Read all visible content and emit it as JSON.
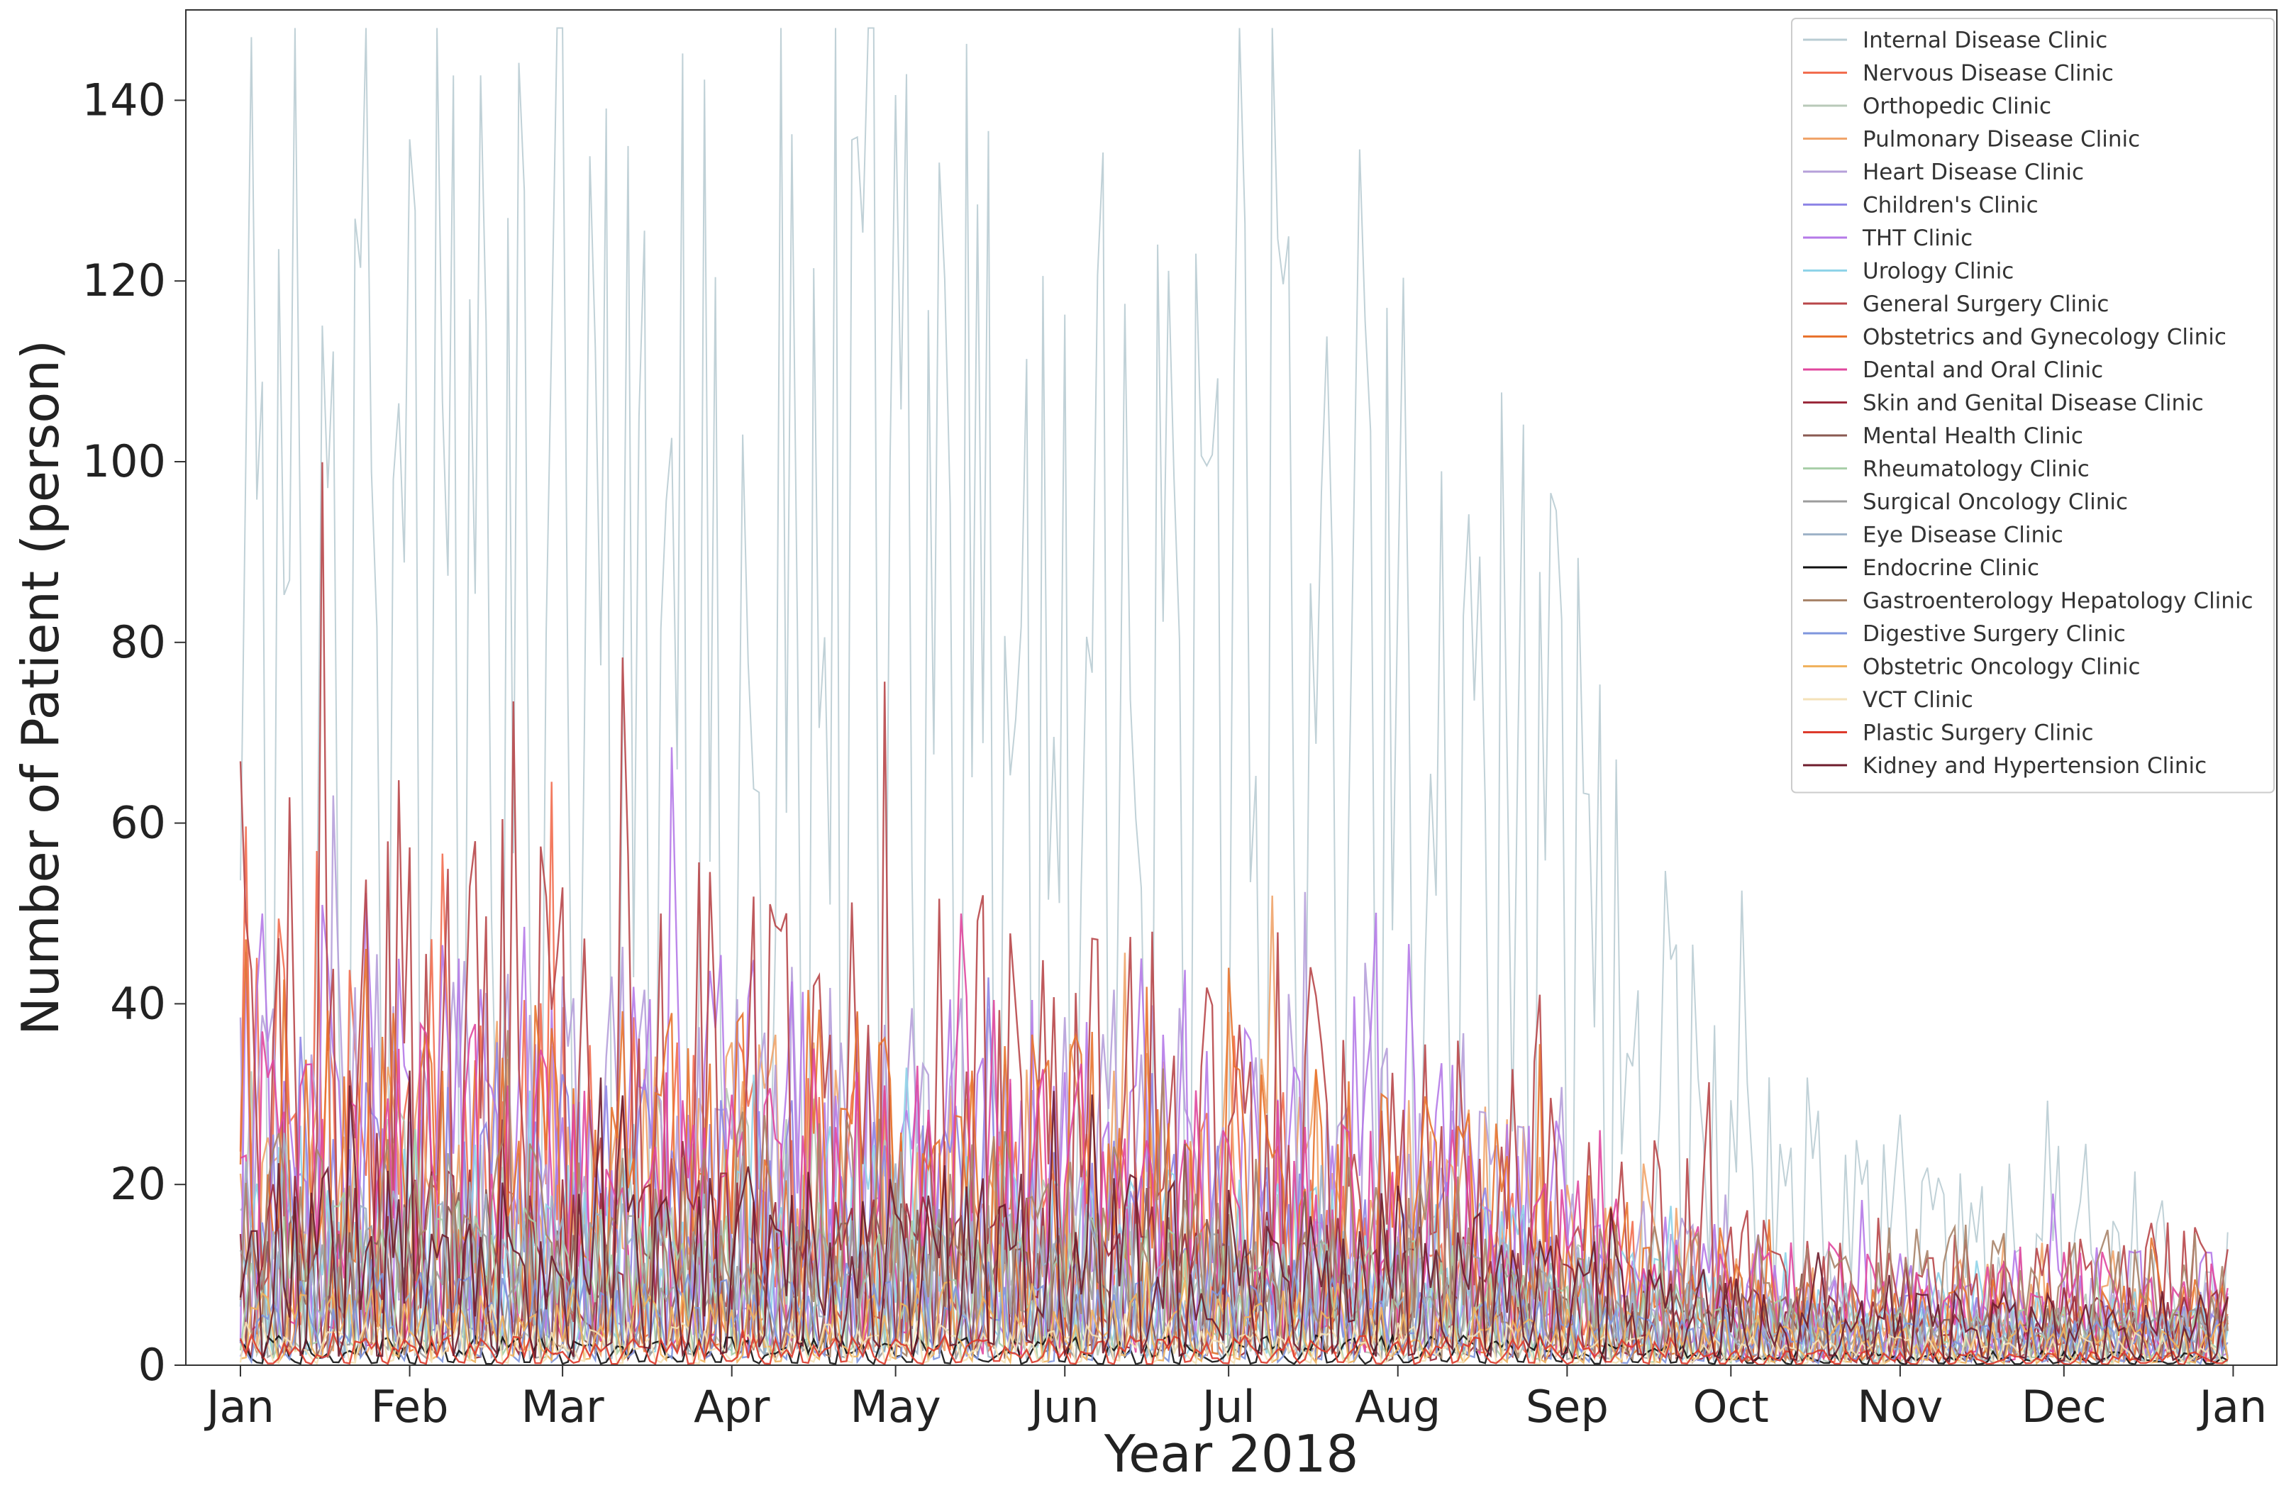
{
  "chart_data": {
    "type": "line",
    "title": "",
    "xlabel": "Year 2018",
    "ylabel": "Number of Patient (person)",
    "ylim": [
      0,
      150
    ],
    "yticks": [
      0,
      20,
      40,
      60,
      80,
      100,
      120,
      140
    ],
    "ytick_labels": [
      "0",
      "20",
      "40",
      "60",
      "80",
      "100",
      "120",
      "140"
    ],
    "xlim": [
      "2017-12-22",
      "2019-01-09"
    ],
    "xticks": [
      "2018-01-01",
      "2018-02-01",
      "2018-03-01",
      "2018-04-01",
      "2018-05-01",
      "2018-06-01",
      "2018-07-01",
      "2018-08-01",
      "2018-09-01",
      "2018-10-01",
      "2018-11-01",
      "2018-12-01",
      "2019-01-01"
    ],
    "xtick_labels": [
      "Jan",
      "Feb",
      "Mar",
      "Apr",
      "May",
      "Jun",
      "Jul",
      "Aug",
      "Sep",
      "Oct",
      "Nov",
      "Dec",
      "Jan"
    ],
    "x_start": "2018-01-01",
    "x_end": "2018-12-31",
    "grid": false,
    "legend_position": "top-right",
    "series": [
      {
        "name": "Internal Disease Clinic",
        "color": "#b9ccd3",
        "anchors": [
          95,
          105,
          100,
          85,
          90,
          95,
          92,
          85,
          80,
          75,
          70,
          50,
          22,
          18,
          18,
          15,
          12
        ]
      },
      {
        "name": "Nervous Disease Clinic",
        "color": "#f26d4f",
        "anchors": [
          40,
          30,
          28,
          25,
          22,
          20,
          18,
          16,
          15,
          12,
          10,
          8,
          5,
          4,
          4,
          4,
          4
        ]
      },
      {
        "name": "Orthopedic Clinic",
        "color": "#b8c9b8",
        "anchors": [
          20,
          18,
          16,
          18,
          20,
          18,
          16,
          15,
          14,
          12,
          10,
          8,
          6,
          5,
          5,
          5,
          5
        ]
      },
      {
        "name": "Pulmonary Disease Clinic",
        "color": "#f0a46a",
        "anchors": [
          18,
          20,
          22,
          20,
          24,
          22,
          20,
          22,
          24,
          20,
          18,
          14,
          8,
          6,
          6,
          6,
          6
        ]
      },
      {
        "name": "Heart Disease Clinic",
        "color": "#b6a0da",
        "anchors": [
          25,
          30,
          28,
          30,
          26,
          28,
          24,
          26,
          28,
          24,
          22,
          14,
          8,
          6,
          6,
          6,
          6
        ]
      },
      {
        "name": "Children's Clinic",
        "color": "#8f86e6",
        "anchors": [
          18,
          20,
          22,
          20,
          18,
          16,
          18,
          16,
          15,
          14,
          12,
          8,
          6,
          5,
          5,
          5,
          5
        ]
      },
      {
        "name": "THT Clinic",
        "color": "#b57ae8",
        "anchors": [
          30,
          32,
          28,
          30,
          28,
          26,
          24,
          26,
          24,
          22,
          20,
          14,
          9,
          8,
          8,
          8,
          8
        ]
      },
      {
        "name": "Urology Clinic",
        "color": "#8fd3e8",
        "anchors": [
          15,
          16,
          16,
          17,
          16,
          15,
          16,
          15,
          14,
          13,
          12,
          9,
          6,
          5,
          5,
          5,
          5
        ]
      },
      {
        "name": "General Surgery Clinic",
        "color": "#b8474a",
        "anchors": [
          45,
          40,
          38,
          36,
          35,
          34,
          32,
          30,
          28,
          26,
          24,
          18,
          12,
          10,
          10,
          10,
          10
        ]
      },
      {
        "name": "Obstetrics and Gynecology Clinic",
        "color": "#e8732e",
        "anchors": [
          30,
          28,
          26,
          25,
          24,
          24,
          22,
          24,
          22,
          20,
          18,
          12,
          8,
          6,
          6,
          6,
          6
        ]
      },
      {
        "name": "Dental and Oral Clinic",
        "color": "#e0479e",
        "anchors": [
          20,
          22,
          24,
          22,
          20,
          20,
          22,
          20,
          18,
          18,
          16,
          12,
          9,
          8,
          8,
          8,
          8
        ]
      },
      {
        "name": "Skin and Genital Disease Clinic",
        "color": "#9b2a3b",
        "anchors": [
          12,
          14,
          14,
          12,
          13,
          12,
          12,
          12,
          11,
          10,
          10,
          8,
          6,
          5,
          5,
          5,
          5
        ]
      },
      {
        "name": "Mental Health Clinic",
        "color": "#8a5a52",
        "anchors": [
          12,
          11,
          12,
          11,
          10,
          11,
          10,
          10,
          10,
          9,
          8,
          7,
          5,
          4,
          4,
          4,
          4
        ]
      },
      {
        "name": "Rheumatology Clinic",
        "color": "#a9cfa9",
        "anchors": [
          10,
          12,
          11,
          12,
          10,
          11,
          10,
          10,
          9,
          9,
          8,
          6,
          5,
          4,
          4,
          4,
          4
        ]
      },
      {
        "name": "Surgical Oncology Clinic",
        "color": "#9c9c9c",
        "anchors": [
          10,
          11,
          10,
          11,
          10,
          10,
          11,
          10,
          9,
          9,
          8,
          7,
          5,
          4,
          4,
          4,
          4
        ]
      },
      {
        "name": "Eye Disease Clinic",
        "color": "#9fb3c8",
        "anchors": [
          10,
          12,
          12,
          11,
          12,
          11,
          10,
          11,
          10,
          9,
          9,
          7,
          5,
          4,
          4,
          4,
          4
        ]
      },
      {
        "name": "Endocrine Clinic",
        "color": "#111111",
        "anchors": [
          2,
          2,
          2,
          2,
          2,
          2,
          2,
          2,
          2,
          2,
          2,
          2,
          1,
          1,
          1,
          1,
          1
        ]
      },
      {
        "name": "Gastroenterology Hepatology Clinic",
        "color": "#a8846a",
        "anchors": [
          14,
          16,
          15,
          16,
          18,
          17,
          16,
          16,
          15,
          14,
          13,
          10,
          9,
          9,
          10,
          10,
          10
        ]
      },
      {
        "name": "Digestive Surgery Clinic",
        "color": "#7f96dd",
        "anchors": [
          6,
          7,
          6,
          7,
          6,
          6,
          7,
          6,
          6,
          6,
          5,
          4,
          3,
          3,
          3,
          3,
          3
        ]
      },
      {
        "name": "Obstetric Oncology Clinic",
        "color": "#f0b25e",
        "anchors": [
          5,
          6,
          5,
          6,
          5,
          5,
          6,
          5,
          5,
          5,
          4,
          4,
          3,
          3,
          3,
          3,
          3
        ]
      },
      {
        "name": "VCT Clinic",
        "color": "#f4e2b8",
        "anchors": [
          3,
          3,
          3,
          3,
          3,
          3,
          3,
          3,
          3,
          3,
          3,
          2,
          2,
          2,
          2,
          2,
          2
        ]
      },
      {
        "name": "Plastic Surgery Clinic",
        "color": "#dd3b2c",
        "anchors": [
          2,
          2,
          2,
          2,
          2,
          2,
          2,
          2,
          2,
          2,
          2,
          2,
          1,
          1,
          1,
          1,
          1
        ]
      },
      {
        "name": "Kidney and Hypertension Clinic",
        "color": "#6e1d2c",
        "anchors": [
          14,
          15,
          14,
          13,
          14,
          13,
          14,
          13,
          12,
          12,
          11,
          9,
          6,
          5,
          5,
          5,
          5
        ]
      }
    ]
  }
}
